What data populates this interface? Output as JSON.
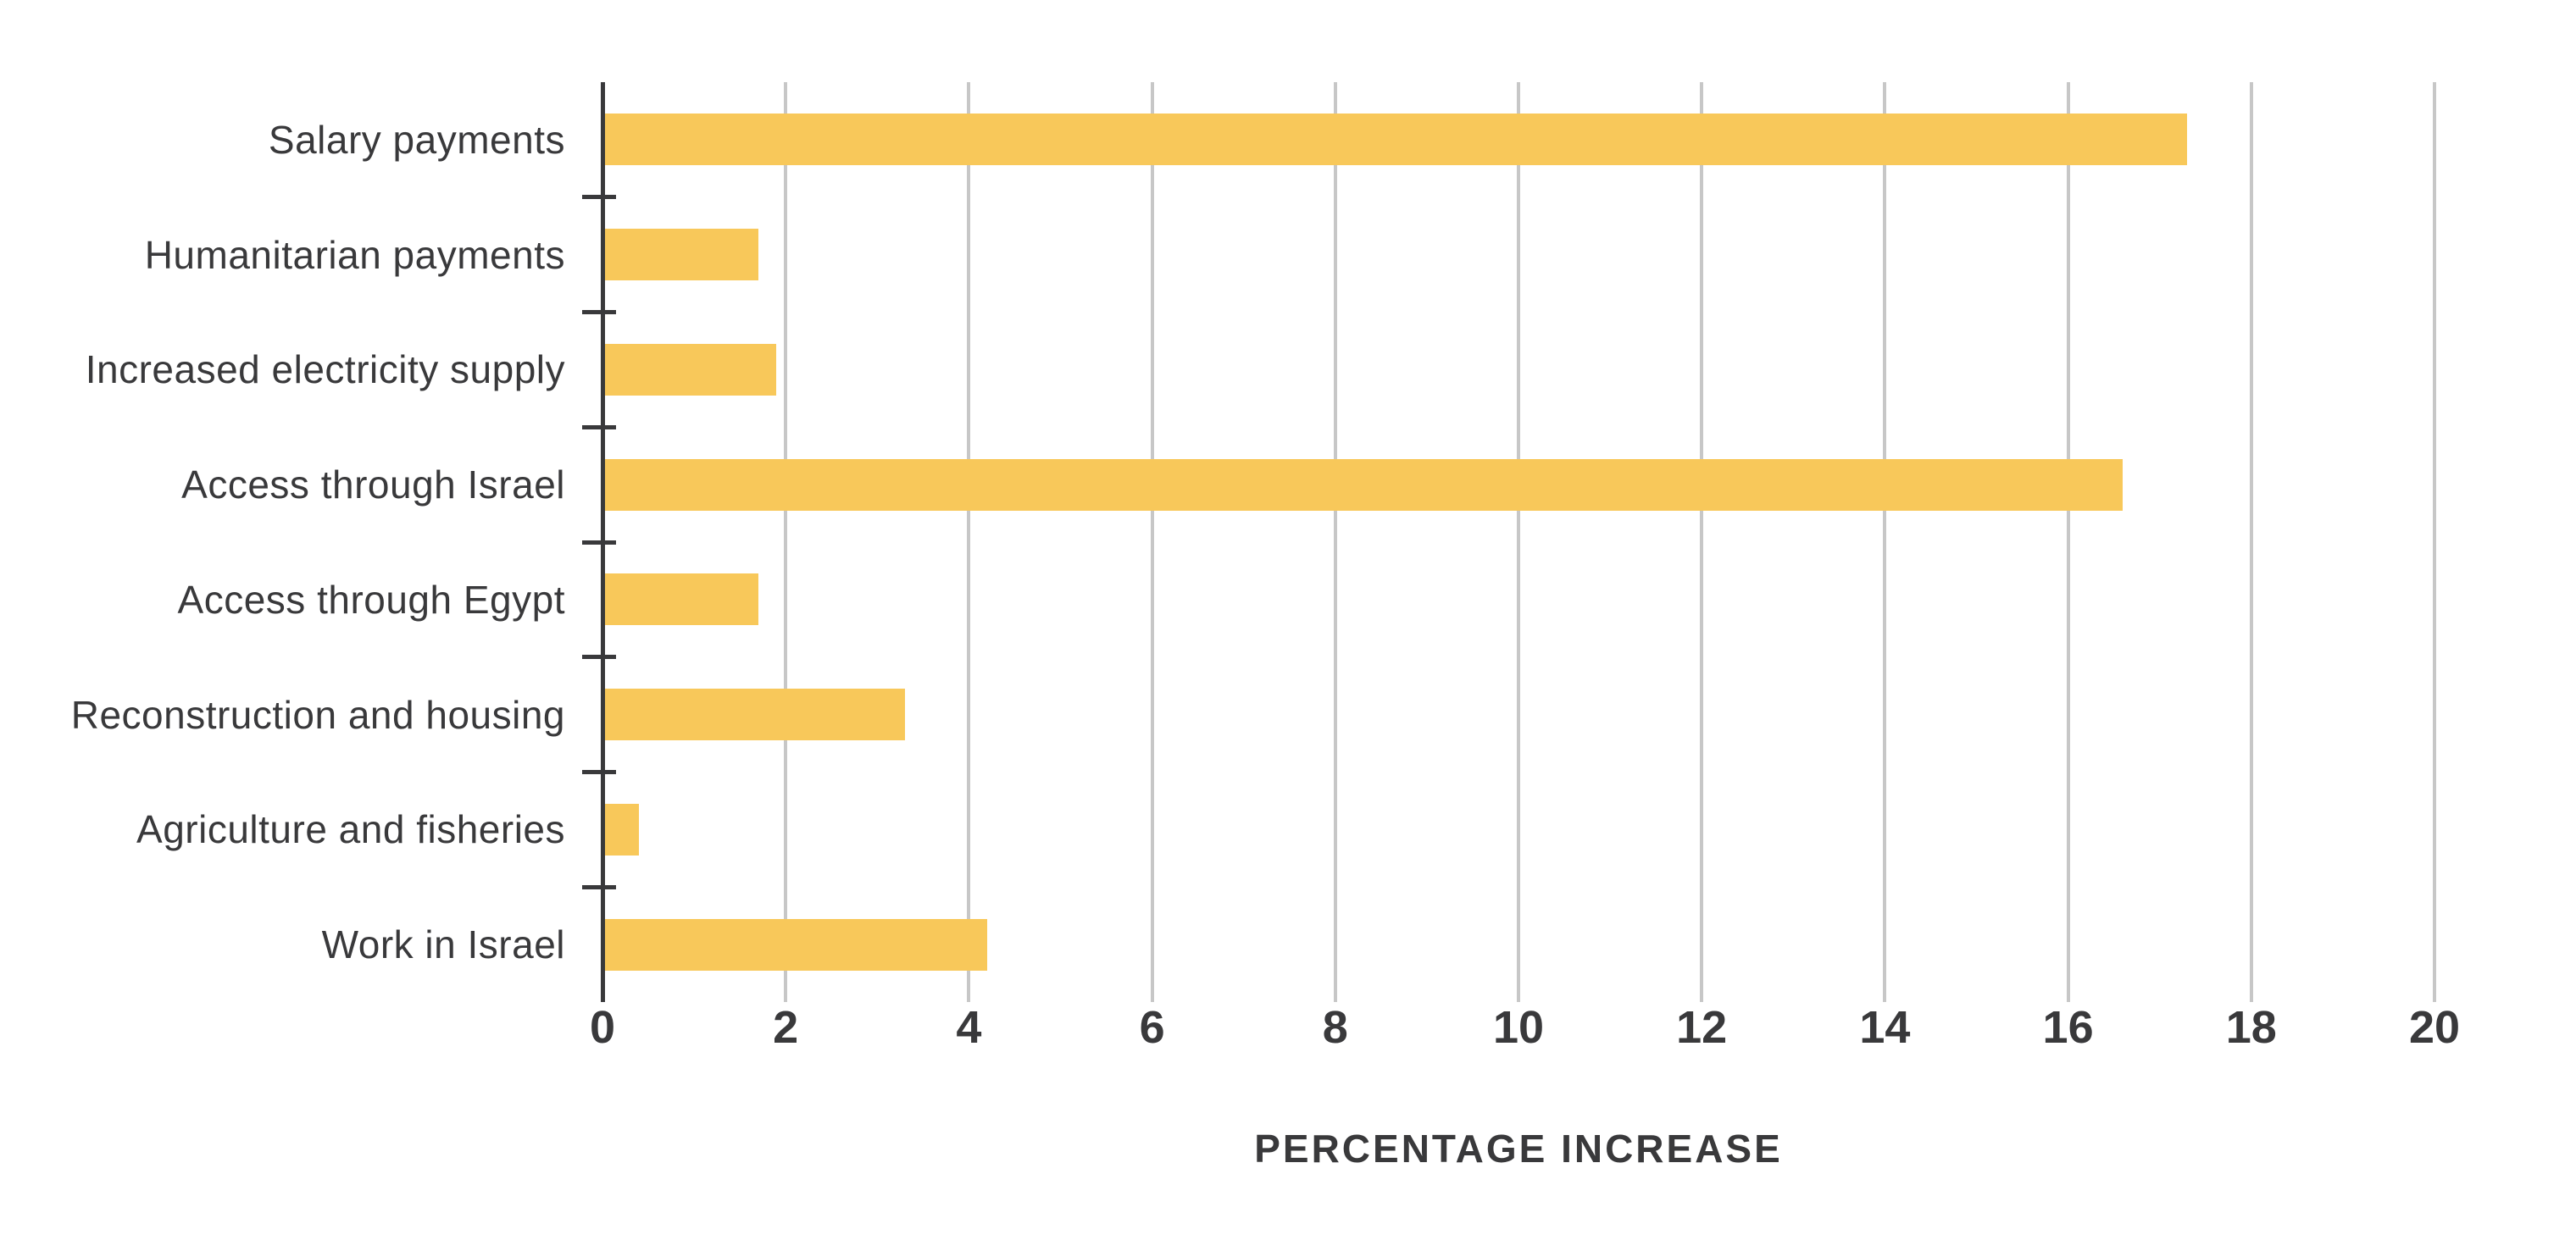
{
  "chart_data": {
    "type": "bar",
    "orientation": "horizontal",
    "title": "",
    "categories": [
      "Salary payments",
      "Humanitarian payments",
      "Increased electricity supply",
      "Access through Israel",
      "Access through Egypt",
      "Reconstruction and housing",
      "Agriculture and fisheries",
      "Work in Israel"
    ],
    "values": [
      17.3,
      1.7,
      1.9,
      16.6,
      1.7,
      3.3,
      0.4,
      4.2
    ],
    "xlabel": "PERCENTAGE INCREASE",
    "ylabel": "",
    "xlim": [
      0,
      20
    ],
    "xticks": [
      0,
      2,
      4,
      6,
      8,
      10,
      12,
      14,
      16,
      18,
      20
    ],
    "grid": "vertical-gridlines-on",
    "legend": "none",
    "colors": {
      "bar": "#F8C85A",
      "axis_and_text": "#39393B",
      "gridline": "#C7C7C7",
      "background": "#FFFFFF"
    }
  }
}
